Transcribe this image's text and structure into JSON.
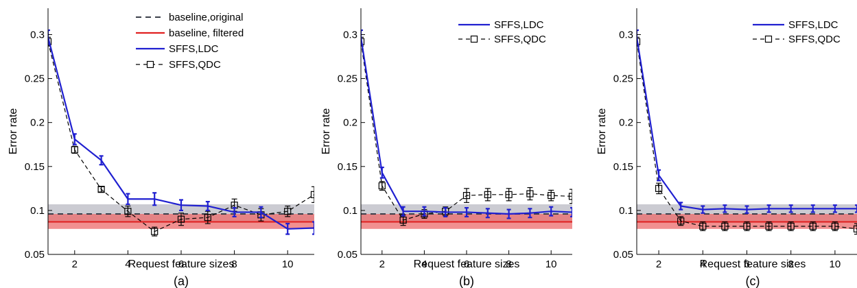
{
  "chart_data": [
    {
      "type": "line",
      "caption": "(a)",
      "xlabel": "Request feature sizes",
      "ylabel": "Error rate",
      "xlim": [
        1,
        11
      ],
      "ylim": [
        0.05,
        0.33
      ],
      "xticks": [
        "2",
        "4",
        "6",
        "8",
        "10"
      ],
      "yticks": [
        "0.05",
        "0.1",
        "0.15",
        "0.2",
        "0.25",
        "0.3"
      ],
      "grid": false,
      "legend_position": "top-right",
      "legend": [
        {
          "label": "baseline,original",
          "style": "dashed",
          "color": "#3b3f4a"
        },
        {
          "label": "baseline, filtered",
          "style": "solid",
          "color": "#e02020"
        },
        {
          "label": "SFFS,LDC",
          "style": "solid",
          "color": "#1f1fd0"
        },
        {
          "label": "SFFS,QDC",
          "style": "dashed-square",
          "color": "#000000"
        }
      ],
      "bands": [
        {
          "name": "baseline,original",
          "center": 0.096,
          "low": 0.086,
          "high": 0.107,
          "color": "#c8c8d0"
        },
        {
          "name": "baseline, filtered",
          "center": 0.087,
          "low": 0.079,
          "high": 0.096,
          "color": "#ec6b6b"
        }
      ],
      "x": [
        1,
        2,
        3,
        4,
        5,
        6,
        7,
        8,
        9,
        10,
        11
      ],
      "series": [
        {
          "name": "SFFS,LDC",
          "values": [
            0.297,
            0.181,
            0.157,
            0.113,
            0.113,
            0.106,
            0.105,
            0.098,
            0.098,
            0.079,
            0.08
          ],
          "errors": [
            0.008,
            0.006,
            0.005,
            0.006,
            0.007,
            0.006,
            0.005,
            0.005,
            0.006,
            0.006,
            0.007
          ]
        },
        {
          "name": "SFFS,QDC",
          "values": [
            0.292,
            0.169,
            0.124,
            0.099,
            0.076,
            0.09,
            0.092,
            0.106,
            0.095,
            0.099,
            0.118
          ],
          "errors": [
            0.005,
            0.004,
            0.003,
            0.006,
            0.005,
            0.007,
            0.007,
            0.007,
            0.007,
            0.006,
            0.009
          ]
        }
      ]
    },
    {
      "type": "line",
      "caption": "(b)",
      "xlabel": "Request feature sizes",
      "ylabel": "Error rate",
      "xlim": [
        1,
        11
      ],
      "ylim": [
        0.05,
        0.33
      ],
      "xticks": [
        "2",
        "4",
        "6",
        "8",
        "10"
      ],
      "yticks": [
        "0.05",
        "0.1",
        "0.15",
        "0.2",
        "0.25",
        "0.3"
      ],
      "grid": false,
      "legend_position": "top-right",
      "legend": [
        {
          "label": "SFFS,LDC",
          "style": "solid",
          "color": "#1f1fd0"
        },
        {
          "label": "SFFS,QDC",
          "style": "dashed-square",
          "color": "#000000"
        }
      ],
      "bands": [
        {
          "name": "baseline,original",
          "center": 0.096,
          "low": 0.086,
          "high": 0.107,
          "color": "#c8c8d0"
        },
        {
          "name": "baseline, filtered",
          "center": 0.087,
          "low": 0.079,
          "high": 0.096,
          "color": "#ec6b6b"
        }
      ],
      "x": [
        1,
        2,
        3,
        4,
        5,
        6,
        7,
        8,
        9,
        10,
        11
      ],
      "series": [
        {
          "name": "SFFS,LDC",
          "values": [
            0.297,
            0.143,
            0.099,
            0.099,
            0.098,
            0.098,
            0.097,
            0.096,
            0.097,
            0.099,
            0.098
          ],
          "errors": [
            0.008,
            0.006,
            0.005,
            0.005,
            0.005,
            0.005,
            0.005,
            0.005,
            0.005,
            0.005,
            0.005
          ]
        },
        {
          "name": "SFFS,QDC",
          "values": [
            0.292,
            0.128,
            0.089,
            0.096,
            0.099,
            0.117,
            0.118,
            0.118,
            0.119,
            0.117,
            0.116
          ],
          "errors": [
            0.005,
            0.005,
            0.006,
            0.005,
            0.005,
            0.008,
            0.007,
            0.007,
            0.007,
            0.006,
            0.008
          ]
        }
      ]
    },
    {
      "type": "line",
      "caption": "(c)",
      "xlabel": "Request feature sizes",
      "ylabel": "Error rate",
      "xlim": [
        1,
        11
      ],
      "ylim": [
        0.05,
        0.33
      ],
      "xticks": [
        "2",
        "4",
        "6",
        "8",
        "10"
      ],
      "yticks": [
        "0.05",
        "0.1",
        "0.15",
        "0.2",
        "0.25",
        "0.3"
      ],
      "grid": false,
      "legend_position": "top-right",
      "legend": [
        {
          "label": "SFFS,LDC",
          "style": "solid",
          "color": "#1f1fd0"
        },
        {
          "label": "SFFS,QDC",
          "style": "dashed-square",
          "color": "#000000"
        }
      ],
      "bands": [
        {
          "name": "baseline,original",
          "center": 0.096,
          "low": 0.086,
          "high": 0.107,
          "color": "#c8c8d0"
        },
        {
          "name": "baseline, filtered",
          "center": 0.087,
          "low": 0.079,
          "high": 0.096,
          "color": "#ec6b6b"
        }
      ],
      "x": [
        1,
        2,
        3,
        4,
        5,
        6,
        7,
        8,
        9,
        10,
        11
      ],
      "series": [
        {
          "name": "SFFS,LDC",
          "values": [
            0.297,
            0.14,
            0.105,
            0.101,
            0.102,
            0.101,
            0.102,
            0.102,
            0.102,
            0.102,
            0.102
          ],
          "errors": [
            0.008,
            0.006,
            0.004,
            0.004,
            0.004,
            0.004,
            0.004,
            0.004,
            0.004,
            0.004,
            0.004
          ]
        },
        {
          "name": "SFFS,QDC",
          "values": [
            0.292,
            0.125,
            0.088,
            0.082,
            0.082,
            0.082,
            0.082,
            0.082,
            0.082,
            0.082,
            0.079
          ],
          "errors": [
            0.005,
            0.006,
            0.005,
            0.005,
            0.005,
            0.005,
            0.005,
            0.005,
            0.005,
            0.005,
            0.006
          ]
        }
      ]
    }
  ]
}
